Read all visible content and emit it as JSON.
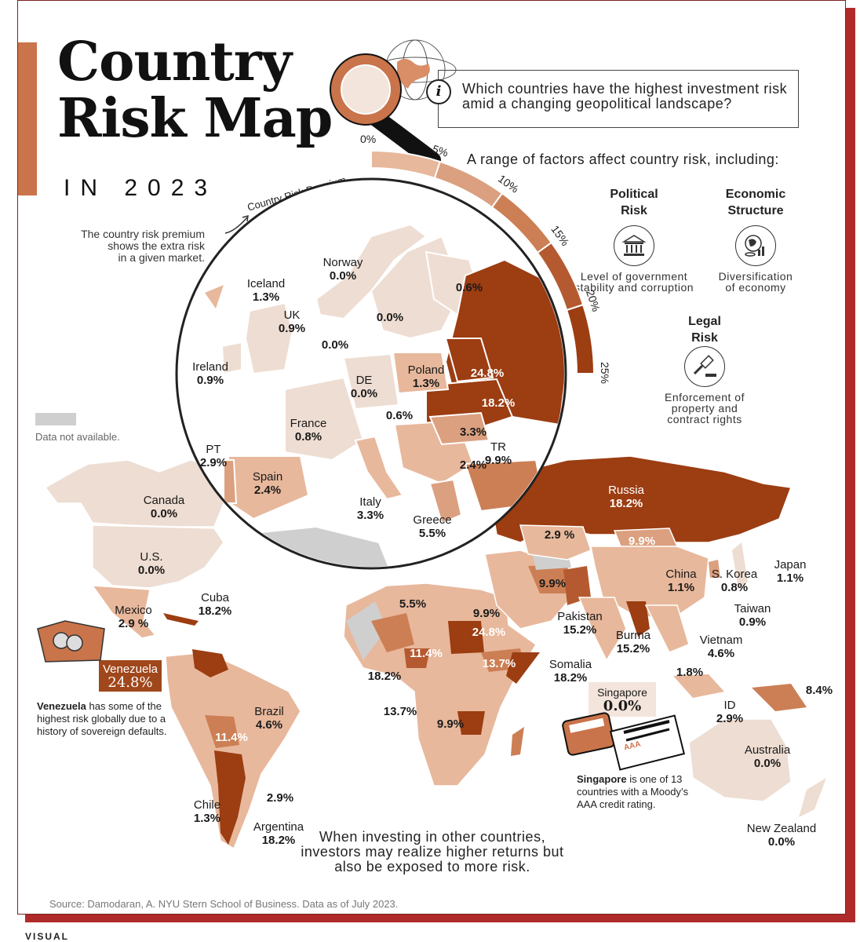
{
  "title": {
    "line1": "Country",
    "line2": "Risk Map",
    "sub": "IN 2023"
  },
  "question": "Which countries have the highest investment risk amid a changing geopolitical landscape?",
  "factors": {
    "intro": "A range of factors affect country risk, including:",
    "items": [
      {
        "title": "Political\nRisk",
        "desc": "Level of government\nstability and corruption",
        "icon": "government-building-icon"
      },
      {
        "title": "Economic\nStructure",
        "desc": "Diversification\nof economy",
        "icon": "globe-coins-icon"
      },
      {
        "title": "Legal\nRisk",
        "desc": "Enforcement of\nproperty and\ncontract rights",
        "icon": "gavel-icon"
      }
    ]
  },
  "premium_note": "The country risk premium\nshows the extra risk\nin a given market.",
  "scale": {
    "label": "Country Risk Premium",
    "ticks": [
      "0%",
      "5%",
      "10%",
      "15%",
      "20%",
      "25%"
    ],
    "colors": [
      "#eeddd2",
      "#e8b89c",
      "#dba07f",
      "#cc7f55",
      "#b55a30",
      "#9c3d12"
    ]
  },
  "legend_na": "Data not available.",
  "colors": {
    "na": "#cfcfcf",
    "accent": "#c9744a",
    "shadow": "#b12a2a"
  },
  "europe": [
    {
      "name": "Norway",
      "value": "0.0%"
    },
    {
      "name": "Iceland",
      "value": "1.3%"
    },
    {
      "name": "UK",
      "value": "0.9%"
    },
    {
      "name": "Ireland",
      "value": "0.9%"
    },
    {
      "name": "",
      "value": "0.6%"
    },
    {
      "name": "",
      "value": "0.0%"
    },
    {
      "name": "",
      "value": "0.0%"
    },
    {
      "name": "Poland",
      "value": "1.3%"
    },
    {
      "name": "",
      "value": "24.8%"
    },
    {
      "name": "DE",
      "value": "0.0%"
    },
    {
      "name": "",
      "value": "18.2%"
    },
    {
      "name": "",
      "value": "0.6%"
    },
    {
      "name": "France",
      "value": "0.8%"
    },
    {
      "name": "",
      "value": "3.3%"
    },
    {
      "name": "TR",
      "value": "9.9%"
    },
    {
      "name": "",
      "value": "2.4%"
    },
    {
      "name": "PT",
      "value": "2.9%"
    },
    {
      "name": "Spain",
      "value": "2.4%"
    },
    {
      "name": "Italy",
      "value": "3.3%"
    },
    {
      "name": "Greece",
      "value": "5.5%"
    }
  ],
  "world": [
    {
      "name": "Canada",
      "value": "0.0%"
    },
    {
      "name": "U.S.",
      "value": "0.0%"
    },
    {
      "name": "Cuba",
      "value": "18.2%"
    },
    {
      "name": "Mexico",
      "value": "2.9 %"
    },
    {
      "name": "Russia",
      "value": "18.2%"
    },
    {
      "name": "",
      "value": "2.9 %"
    },
    {
      "name": "",
      "value": "9.9%"
    },
    {
      "name": "Japan",
      "value": "1.1%"
    },
    {
      "name": "S. Korea",
      "value": "0.8%"
    },
    {
      "name": "China",
      "value": "1.1%"
    },
    {
      "name": "",
      "value": "9.9%"
    },
    {
      "name": "Taiwan",
      "value": "0.9%"
    },
    {
      "name": "Pakistan",
      "value": "15.2%"
    },
    {
      "name": "Burma",
      "value": "15.2%"
    },
    {
      "name": "Vietnam",
      "value": "4.6%"
    },
    {
      "name": "",
      "value": "1.8%"
    },
    {
      "name": "ID",
      "value": "2.9%"
    },
    {
      "name": "",
      "value": "8.4%"
    },
    {
      "name": "Australia",
      "value": "0.0%"
    },
    {
      "name": "New Zealand",
      "value": "0.0%"
    },
    {
      "name": "",
      "value": "5.5%"
    },
    {
      "name": "",
      "value": "9.9%"
    },
    {
      "name": "",
      "value": "24.8%"
    },
    {
      "name": "",
      "value": "11.4%"
    },
    {
      "name": "",
      "value": "13.7%"
    },
    {
      "name": "Somalia",
      "value": "18.2%"
    },
    {
      "name": "",
      "value": "18.2%"
    },
    {
      "name": "",
      "value": "13.7%"
    },
    {
      "name": "",
      "value": "9.9%"
    },
    {
      "name": "",
      "value": "13.7%"
    },
    {
      "name": "Brazil",
      "value": "4.6%"
    },
    {
      "name": "",
      "value": "11.4%"
    },
    {
      "name": "",
      "value": "2.9%"
    },
    {
      "name": "Chile",
      "value": "1.3%"
    },
    {
      "name": "Argentina",
      "value": "18.2%"
    }
  ],
  "venezuela": {
    "name": "Venezuela",
    "value": "24.8%",
    "bold": "Venezuela",
    "note": " has some of the highest risk globally due to a history of sovereign defaults."
  },
  "singapore": {
    "name": "Singapore",
    "value": "0.0%",
    "bold": "Singapore",
    "note": " is one of 13 countries with a Moody’s AAA credit rating.",
    "badge": "AAA"
  },
  "bottom_text": "When investing in other countries, investors may realize higher returns but also be exposed to more risk.",
  "source": "Source: Damodaran, A. NYU Stern School of Business. Data as of July 2023.",
  "brand": "VISUAL"
}
